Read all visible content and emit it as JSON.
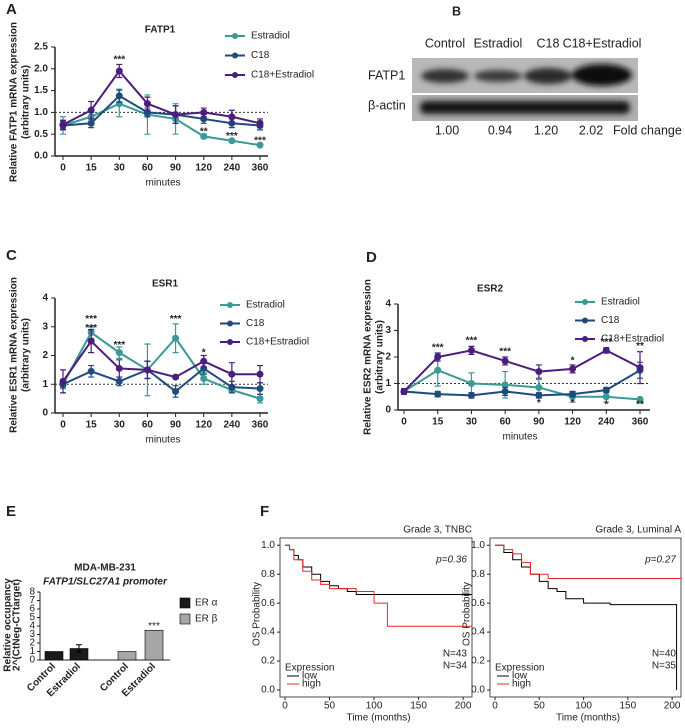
{
  "chart_data": [
    {
      "panel": "A",
      "type": "line",
      "title": "FATP1",
      "ylabel": [
        "Relative FATP1 mRNA expression",
        "(arbitrary units)"
      ],
      "xlabel": "minutes",
      "categories": [
        "0",
        "15",
        "30",
        "60",
        "90",
        "120",
        "240",
        "360"
      ],
      "series": [
        {
          "name": "Estradiol",
          "color": "#3a9a96",
          "values": [
            0.7,
            0.9,
            1.2,
            0.95,
            0.85,
            0.45,
            0.35,
            0.25
          ],
          "errors": [
            0.2,
            0.1,
            0.3,
            0.45,
            0.35,
            0.05,
            0.03,
            0.03
          ]
        },
        {
          "name": "C18",
          "color": "#1f4a7a",
          "values": [
            0.7,
            0.75,
            1.38,
            1.0,
            0.95,
            0.85,
            0.75,
            0.7
          ],
          "errors": [
            0.1,
            0.1,
            0.15,
            0.1,
            0.2,
            0.1,
            0.1,
            0.1
          ]
        },
        {
          "name": "C18+Estradiol",
          "color": "#4b1d7e",
          "values": [
            0.72,
            1.05,
            1.95,
            1.2,
            0.95,
            1.0,
            0.9,
            0.75
          ],
          "errors": [
            0.1,
            0.2,
            0.15,
            0.15,
            0.2,
            0.1,
            0.15,
            0.1
          ]
        }
      ],
      "ylim": [
        0,
        2.5
      ],
      "yticks": [
        {
          "value": 0,
          "label": "0.0"
        },
        {
          "value": 0.5,
          "label": "0.5"
        },
        {
          "value": 1,
          "label": "1.0"
        },
        {
          "value": 1.5,
          "label": "1.5"
        },
        {
          "value": 2,
          "label": "2.0"
        },
        {
          "value": 2.5,
          "label": "2.5"
        }
      ],
      "hline": 1,
      "annotations": [
        {
          "text": "***",
          "x": "30",
          "y": 2.2
        },
        {
          "text": "**",
          "x": "120",
          "y": 0.55
        },
        {
          "text": "***",
          "x": "240",
          "y": 0.45
        },
        {
          "text": "***",
          "x": "360",
          "y": 0.35
        }
      ]
    },
    {
      "panel": "C",
      "type": "line",
      "title": "ESR1",
      "ylabel": [
        "Relative ESR1 mRNA expression",
        "(arbitrary units)"
      ],
      "xlabel": "minutes",
      "categories": [
        "0",
        "15",
        "30",
        "60",
        "90",
        "120",
        "240",
        "360"
      ],
      "series": [
        {
          "name": "Estradiol",
          "color": "#3a9a96",
          "values": [
            1.0,
            2.8,
            2.1,
            1.5,
            2.6,
            1.2,
            0.8,
            0.5
          ],
          "errors": [
            0.15,
            0.2,
            0.2,
            0.9,
            0.5,
            0.2,
            0.1,
            0.15
          ]
        },
        {
          "name": "C18",
          "color": "#1f4a7a",
          "values": [
            1.0,
            1.45,
            1.1,
            1.5,
            0.75,
            1.55,
            0.9,
            0.85
          ],
          "errors": [
            0.1,
            0.2,
            0.15,
            0.3,
            0.2,
            0.2,
            0.2,
            0.2
          ]
        },
        {
          "name": "C18+Estradiol",
          "color": "#4b1d7e",
          "values": [
            1.1,
            2.5,
            1.55,
            1.5,
            1.25,
            1.8,
            1.35,
            1.35
          ],
          "errors": [
            0.4,
            0.4,
            0.3,
            0.3,
            0.05,
            0.2,
            0.4,
            0.3
          ]
        }
      ],
      "ylim": [
        0,
        4
      ],
      "yticks": [
        0,
        1,
        2,
        3,
        4
      ],
      "hline": 1,
      "annotations": [
        {
          "text": "***",
          "x": "15",
          "y": 3.25
        },
        {
          "text": "***",
          "x": "15",
          "y": 2.95
        },
        {
          "text": "***",
          "x": "30",
          "y": 2.35
        },
        {
          "text": "***",
          "x": "90",
          "y": 3.25
        },
        {
          "text": "*",
          "x": "120",
          "y": 2.1
        }
      ]
    },
    {
      "panel": "D",
      "type": "line",
      "title": "ESR2",
      "ylabel": [
        "Relative ESR2 mRNA expression",
        "(arbitrary units)"
      ],
      "xlabel": "minutes",
      "categories": [
        "0",
        "15",
        "30",
        "60",
        "90",
        "120",
        "240",
        "360"
      ],
      "series": [
        {
          "name": "Estradiol",
          "color": "#3a9a96",
          "values": [
            0.7,
            1.5,
            1.0,
            0.95,
            0.85,
            0.5,
            0.5,
            0.4
          ],
          "errors": [
            0.1,
            0.6,
            0.4,
            0.5,
            0.3,
            0.2,
            0.2,
            0.05
          ]
        },
        {
          "name": "C18",
          "color": "#1f4a7a",
          "values": [
            0.7,
            0.6,
            0.55,
            0.7,
            0.55,
            0.6,
            0.75,
            1.5
          ],
          "errors": [
            0.1,
            0.1,
            0.1,
            0.15,
            0.1,
            0.1,
            0.1,
            0.3
          ]
        },
        {
          "name": "C18+Estradiol",
          "color": "#4b1d7e",
          "values": [
            0.7,
            2.0,
            2.25,
            1.85,
            1.45,
            1.55,
            2.25,
            1.6
          ],
          "errors": [
            0.1,
            0.15,
            0.15,
            0.15,
            0.25,
            0.15,
            0.1,
            0.6
          ]
        }
      ],
      "ylim": [
        0,
        4
      ],
      "yticks": [
        0,
        1,
        2,
        3,
        4
      ],
      "hline": 1,
      "annotations": [
        {
          "text": "***",
          "x": "15",
          "y": 2.35
        },
        {
          "text": "***",
          "x": "30",
          "y": 2.6
        },
        {
          "text": "***",
          "x": "60",
          "y": 2.2
        },
        {
          "text": "*",
          "x": "120",
          "y": 1.85
        },
        {
          "text": "***",
          "x": "240",
          "y": 2.55
        },
        {
          "text": "**",
          "x": "360",
          "y": 2.4
        },
        {
          "text": "*",
          "x": "90",
          "y": 0.25
        },
        {
          "text": "*",
          "x": "120",
          "y": 0.25
        },
        {
          "text": "*",
          "x": "240",
          "y": 0.2
        },
        {
          "text": "**",
          "x": "360",
          "y": 0.2
        }
      ]
    },
    {
      "panel": "E",
      "type": "bar",
      "title": "MDA-MB-231",
      "subtitle": "FATP1/SLC27A1 promoter",
      "ylabel": [
        "Relative occupancy",
        "2^(CtNeg-CTtarget)"
      ],
      "categories": [
        "Control",
        "Estradiol",
        "Control",
        "Estradiol"
      ],
      "series": [
        {
          "name": "ER α",
          "color": "#1a1a1a",
          "values": [
            1,
            1.35,
            null,
            null
          ],
          "errors": [
            null,
            0.45,
            null,
            null
          ]
        },
        {
          "name": "ER β",
          "color": "#a6a6a6",
          "values": [
            null,
            null,
            1,
            3.5
          ],
          "annotations": [
            null,
            null,
            null,
            "***"
          ]
        }
      ],
      "ylim": [
        0,
        8
      ],
      "yticks": [
        0,
        1,
        2,
        3,
        4,
        5,
        6,
        7,
        8
      ]
    },
    {
      "panel": "F",
      "type": "survival",
      "title": "Grade 3, TNBC",
      "pvalue": "p=0.36",
      "xlabel": "Time (months)",
      "ylabel": "OS Probability",
      "legend_title": "Expression",
      "series": [
        {
          "name": "low",
          "color": "#000000",
          "n_label": "N=43",
          "x": [
            0,
            5,
            10,
            15,
            20,
            30,
            40,
            50,
            60,
            70,
            80,
            100,
            210
          ],
          "values": [
            1,
            0.97,
            0.93,
            0.9,
            0.85,
            0.8,
            0.75,
            0.72,
            0.7,
            0.68,
            0.66,
            0.66,
            0.66
          ]
        },
        {
          "name": "high",
          "color": "#e8262a",
          "n_label": "N=34",
          "x": [
            0,
            5,
            10,
            20,
            30,
            40,
            50,
            60,
            80,
            100,
            115,
            210
          ],
          "values": [
            1,
            0.97,
            0.9,
            0.82,
            0.76,
            0.73,
            0.7,
            0.7,
            0.68,
            0.6,
            0.44,
            0.44
          ]
        }
      ],
      "xlim": [
        0,
        210
      ],
      "xticks": [
        0,
        50,
        100,
        150,
        200
      ],
      "ylim": [
        0,
        1.05
      ],
      "yticks": [
        {
          "value": 0,
          "label": "0.0"
        },
        {
          "value": 0.2,
          "label": "0.2"
        },
        {
          "value": 0.4,
          "label": "0.4"
        },
        {
          "value": 0.6,
          "label": "0.6"
        },
        {
          "value": 0.8,
          "label": "0.8"
        },
        {
          "value": 1,
          "label": "1.0"
        }
      ]
    },
    {
      "type": "survival",
      "title": "Grade 3, Luminal A",
      "pvalue": "p=0.27",
      "xlabel": "Time (months)",
      "ylabel": "OS Probability",
      "legend_title": "Expression",
      "series": [
        {
          "name": "low",
          "color": "#000000",
          "n_label": "N=40",
          "x": [
            0,
            10,
            20,
            30,
            40,
            50,
            60,
            70,
            80,
            100,
            130,
            200,
            205
          ],
          "values": [
            1,
            0.95,
            0.9,
            0.85,
            0.8,
            0.75,
            0.7,
            0.68,
            0.63,
            0.6,
            0.59,
            0.59,
            0
          ]
        },
        {
          "name": "high",
          "color": "#e8262a",
          "n_label": "N=35",
          "x": [
            0,
            10,
            20,
            30,
            40,
            60,
            80,
            210
          ],
          "values": [
            1,
            0.97,
            0.94,
            0.88,
            0.8,
            0.77,
            0.77,
            0.77
          ]
        }
      ],
      "xlim": [
        0,
        210
      ],
      "xticks": [
        0,
        50,
        100,
        150,
        200
      ],
      "ylim": [
        0,
        1.05
      ],
      "yticks": [
        {
          "value": 0,
          "label": "0.0"
        },
        {
          "value": 0.2,
          "label": "0.2"
        },
        {
          "value": 0.4,
          "label": "0.4"
        },
        {
          "value": 0.6,
          "label": "0.6"
        },
        {
          "value": 0.8,
          "label": "0.8"
        },
        {
          "value": 1,
          "label": "1.0"
        }
      ]
    }
  ],
  "blot": {
    "panel": "B",
    "columns": [
      "Control",
      "Estradiol",
      "C18",
      "C18+Estradiol"
    ],
    "rows": [
      "FATP1",
      "β-actin"
    ],
    "fold_changes": [
      "1.00",
      "0.94",
      "1.20",
      "2.02"
    ],
    "fold_label": "Fold change"
  }
}
